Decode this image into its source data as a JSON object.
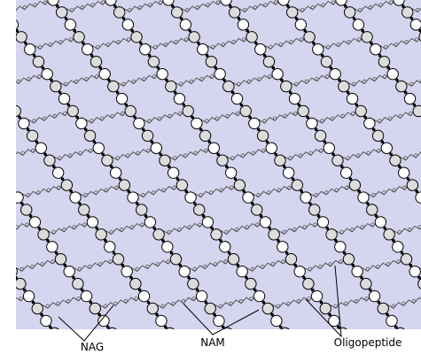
{
  "labels": {
    "nag": "NAG",
    "nam": "NAM",
    "oligopeptide": "Oligopeptide"
  }
}
